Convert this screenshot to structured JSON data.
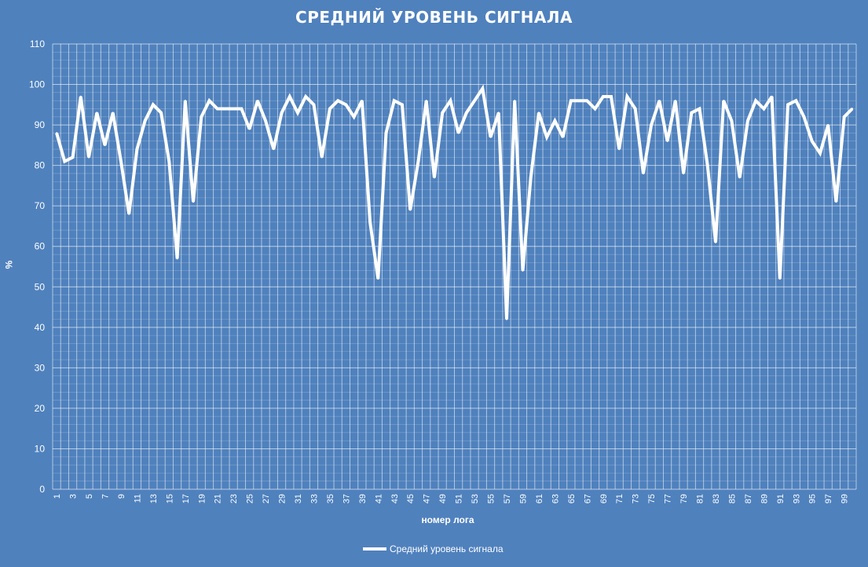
{
  "chart_data": {
    "type": "line",
    "title": "СРЕДНИЙ УРОВЕНЬ СИГНАЛА",
    "xlabel": "номер лога",
    "ylabel": "%",
    "ylim": [
      0,
      110
    ],
    "yticks": [
      0,
      10,
      20,
      30,
      40,
      50,
      60,
      70,
      80,
      90,
      100,
      110
    ],
    "x": [
      1,
      2,
      3,
      4,
      5,
      6,
      7,
      8,
      9,
      10,
      11,
      12,
      13,
      14,
      15,
      16,
      17,
      18,
      19,
      20,
      21,
      22,
      23,
      24,
      25,
      26,
      27,
      28,
      29,
      30,
      31,
      32,
      33,
      34,
      35,
      36,
      37,
      38,
      39,
      40,
      41,
      42,
      43,
      44,
      45,
      46,
      47,
      48,
      49,
      50,
      51,
      52,
      53,
      54,
      55,
      56,
      57,
      58,
      59,
      60,
      61,
      62,
      63,
      64,
      65,
      66,
      67,
      68,
      69,
      70,
      71,
      72,
      73,
      74,
      75,
      76,
      77,
      78,
      79,
      80,
      81,
      82,
      83,
      84,
      85,
      86,
      87,
      88,
      89,
      90,
      91,
      92,
      93,
      94,
      95,
      96,
      97,
      98,
      99,
      100
    ],
    "xtick_labels": [
      "1",
      "3",
      "5",
      "7",
      "9",
      "11",
      "13",
      "15",
      "17",
      "19",
      "21",
      "23",
      "25",
      "27",
      "29",
      "31",
      "33",
      "35",
      "37",
      "39",
      "41",
      "43",
      "45",
      "47",
      "49",
      "51",
      "53",
      "55",
      "57",
      "59",
      "61",
      "63",
      "65",
      "67",
      "69",
      "71",
      "73",
      "75",
      "77",
      "79",
      "81",
      "83",
      "85",
      "87",
      "89",
      "91",
      "93",
      "95",
      "97",
      "99"
    ],
    "grid": true,
    "legend_position": "bottom",
    "series": [
      {
        "name": "Средний уровень сигнала",
        "color": "#ffffff",
        "values": [
          88,
          81,
          82,
          97,
          82,
          93,
          85,
          93,
          81,
          68,
          84,
          91,
          95,
          93,
          81,
          57,
          96,
          71,
          92,
          96,
          94,
          94,
          94,
          94,
          89,
          96,
          91,
          84,
          93,
          97,
          93,
          97,
          95,
          82,
          94,
          96,
          95,
          92,
          96,
          66,
          52,
          88,
          96,
          95,
          69,
          81,
          96,
          77,
          93,
          96,
          88,
          93,
          96,
          99,
          87,
          93,
          42,
          96,
          54,
          77,
          93,
          87,
          91,
          87,
          96,
          96,
          96,
          94,
          97,
          97,
          84,
          97,
          94,
          78,
          90,
          96,
          86,
          96,
          78,
          93,
          94,
          80,
          61,
          96,
          91,
          77,
          91,
          96,
          94,
          97,
          52,
          95,
          96,
          92,
          86,
          83,
          90,
          71,
          92,
          94
        ]
      }
    ]
  }
}
